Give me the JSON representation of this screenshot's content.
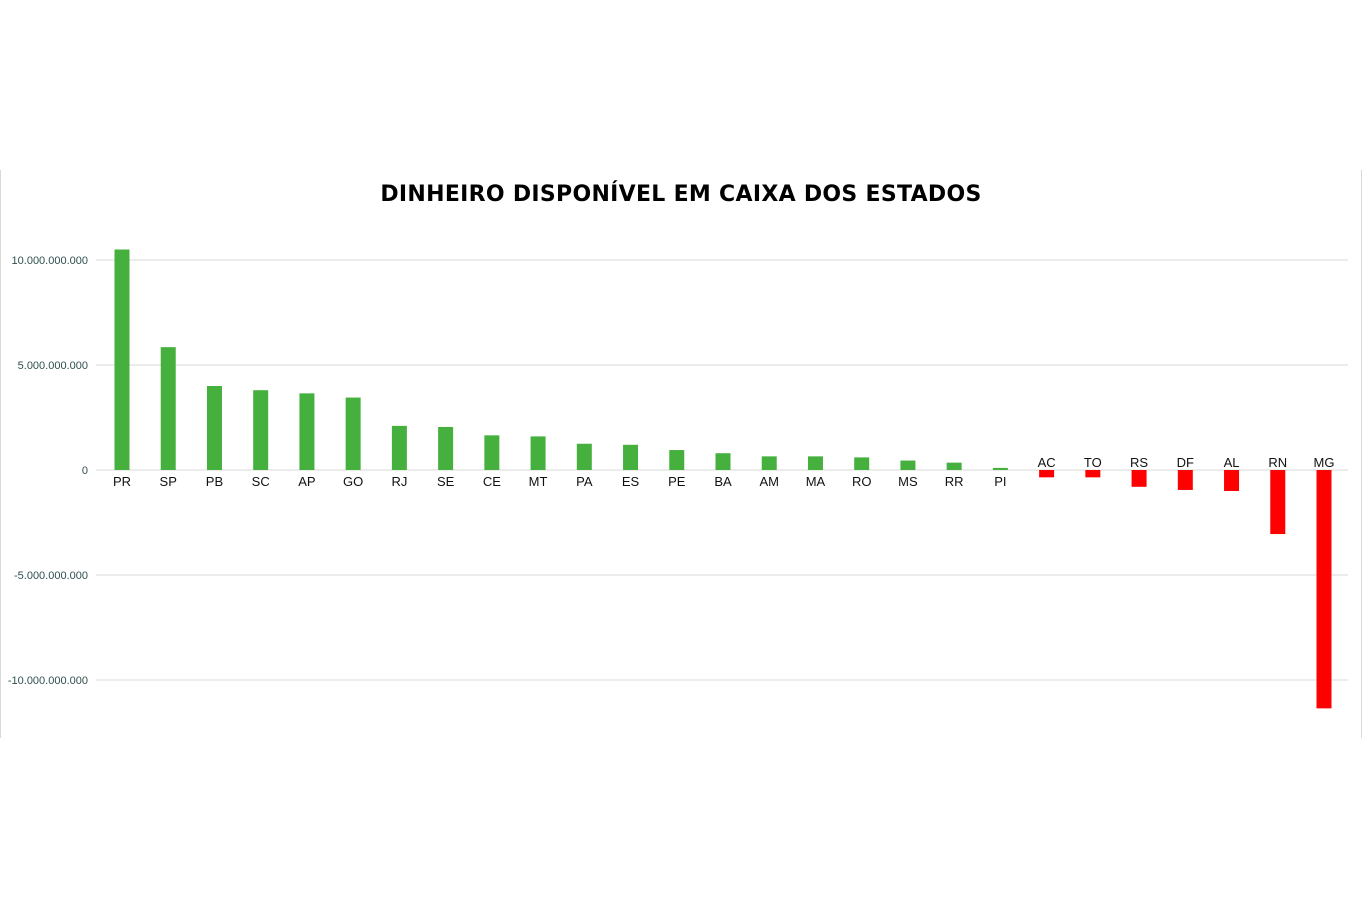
{
  "chart_data": {
    "type": "bar",
    "title": "DINHEIRO DISPONÍVEL EM CAIXA DOS ESTADOS",
    "xlabel": "",
    "ylabel": "",
    "ylim": [
      -11500000000,
      11000000000
    ],
    "yticks": [
      10000000000,
      5000000000,
      0,
      -5000000000,
      -10000000000
    ],
    "ytick_labels": [
      "10.000.000.000",
      "5.000.000.000",
      "0",
      "-5.000.000.000",
      "-10.000.000.000"
    ],
    "grid": true,
    "legend": "none",
    "categories": [
      "PR",
      "SP",
      "PB",
      "SC",
      "AP",
      "GO",
      "RJ",
      "SE",
      "CE",
      "MT",
      "PA",
      "ES",
      "PE",
      "BA",
      "AM",
      "MA",
      "RO",
      "MS",
      "RR",
      "PI",
      "AC",
      "TO",
      "RS",
      "DF",
      "AL",
      "RN",
      "MG"
    ],
    "values": [
      10500000000,
      5850000000,
      4000000000,
      3800000000,
      3650000000,
      3450000000,
      2100000000,
      2050000000,
      1650000000,
      1600000000,
      1250000000,
      1200000000,
      950000000,
      800000000,
      650000000,
      650000000,
      600000000,
      450000000,
      350000000,
      100000000,
      -350000000,
      -350000000,
      -800000000,
      -950000000,
      -1000000000,
      -3050000000,
      -11350000000
    ],
    "colors": {
      "positive": "#46b03f",
      "negative": "#ff0000",
      "grid": "#d9d9d9"
    }
  }
}
